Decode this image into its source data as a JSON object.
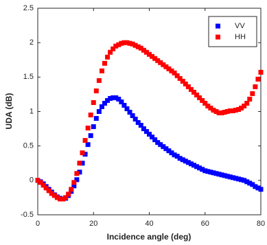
{
  "chart_data": {
    "type": "scatter",
    "xlabel": "Incidence angle (deg)",
    "ylabel": "UDA (dB)",
    "x": [
      0,
      1,
      2,
      3,
      4,
      5,
      6,
      7,
      8,
      9,
      10,
      11,
      12,
      13,
      14,
      15,
      16,
      17,
      18,
      19,
      20,
      21,
      22,
      23,
      24,
      25,
      26,
      27,
      28,
      29,
      30,
      31,
      32,
      33,
      34,
      35,
      36,
      37,
      38,
      39,
      40,
      41,
      42,
      43,
      44,
      45,
      46,
      47,
      48,
      49,
      50,
      51,
      52,
      53,
      54,
      55,
      56,
      57,
      58,
      59,
      60,
      61,
      62,
      63,
      64,
      65,
      66,
      67,
      68,
      69,
      70,
      71,
      72,
      73,
      74,
      75,
      76,
      77,
      78,
      79,
      80
    ],
    "series": [
      {
        "name": "VV",
        "color": "#0000ff",
        "values": [
          0,
          -0.02,
          -0.05,
          -0.09,
          -0.13,
          -0.17,
          -0.21,
          -0.24,
          -0.26,
          -0.27,
          -0.26,
          -0.22,
          -0.16,
          -0.08,
          0.01,
          0.12,
          0.25,
          0.38,
          0.52,
          0.65,
          0.78,
          0.9,
          1.0,
          1.07,
          1.12,
          1.16,
          1.19,
          1.2,
          1.2,
          1.18,
          1.14,
          1.09,
          1.04,
          0.99,
          0.94,
          0.89,
          0.84,
          0.8,
          0.75,
          0.71,
          0.67,
          0.63,
          0.59,
          0.55,
          0.52,
          0.49,
          0.46,
          0.43,
          0.4,
          0.37,
          0.35,
          0.32,
          0.3,
          0.28,
          0.26,
          0.24,
          0.22,
          0.2,
          0.18,
          0.16,
          0.14,
          0.13,
          0.12,
          0.11,
          0.1,
          0.09,
          0.08,
          0.07,
          0.06,
          0.05,
          0.04,
          0.03,
          0.02,
          0.01,
          0,
          -0.02,
          -0.04,
          -0.06,
          -0.09,
          -0.11,
          -0.13
        ]
      },
      {
        "name": "HH",
        "color": "#ff0000",
        "values": [
          0,
          -0.03,
          -0.07,
          -0.11,
          -0.15,
          -0.19,
          -0.22,
          -0.25,
          -0.27,
          -0.27,
          -0.25,
          -0.2,
          -0.13,
          -0.03,
          0.1,
          0.25,
          0.4,
          0.58,
          0.76,
          0.95,
          1.13,
          1.3,
          1.45,
          1.59,
          1.7,
          1.79,
          1.86,
          1.91,
          1.95,
          1.97,
          1.99,
          2.0,
          2.0,
          1.99,
          1.98,
          1.96,
          1.94,
          1.92,
          1.89,
          1.86,
          1.83,
          1.8,
          1.77,
          1.74,
          1.71,
          1.68,
          1.65,
          1.62,
          1.59,
          1.56,
          1.52,
          1.48,
          1.44,
          1.4,
          1.36,
          1.32,
          1.28,
          1.24,
          1.2,
          1.16,
          1.12,
          1.08,
          1.05,
          1.02,
          1.0,
          0.98,
          0.98,
          0.99,
          1.0,
          1.01,
          1.01,
          1.02,
          1.03,
          1.05,
          1.08,
          1.12,
          1.18,
          1.26,
          1.36,
          1.47,
          1.57
        ]
      }
    ],
    "xlim": [
      0,
      80
    ],
    "xticks": [
      0,
      20,
      40,
      60,
      80
    ],
    "ylim": [
      -0.5,
      2.5
    ],
    "yticks": [
      -0.5,
      0,
      0.5,
      1,
      1.5,
      2,
      2.5
    ],
    "legend": "upper right",
    "grid": false
  }
}
